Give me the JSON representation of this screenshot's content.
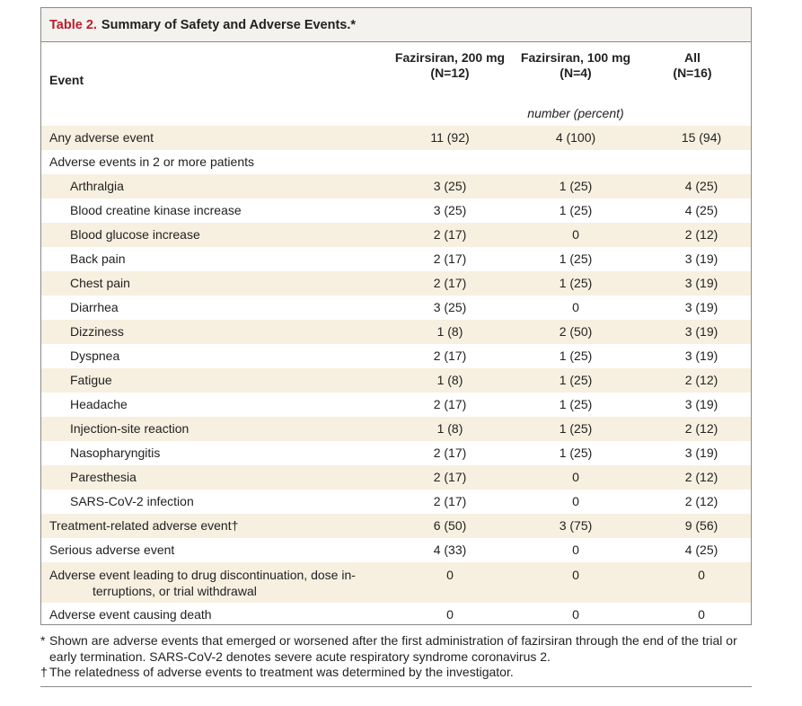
{
  "table": {
    "title_number": "Table 2.",
    "title_text": "Summary of Safety and Adverse Events.*",
    "event_header": "Event",
    "col1_name": "Fazirsiran, 200 mg",
    "col1_n": "(N=12)",
    "col2_name": "Fazirsiran, 100 mg",
    "col2_n": "(N=4)",
    "col3_name": "All",
    "col3_n": "(N=16)",
    "units": "number (percent)",
    "rows": [
      {
        "label": "Any adverse event",
        "v1": "11 (92)",
        "v2": "4 (100)",
        "v3": "15 (94)"
      },
      {
        "label": "Adverse events in 2 or more patients",
        "v1": "",
        "v2": "",
        "v3": ""
      },
      {
        "label": "Arthralgia",
        "v1": "3 (25)",
        "v2": "1 (25)",
        "v3": "4 (25)"
      },
      {
        "label": "Blood creatine kinase increase",
        "v1": "3 (25)",
        "v2": "1 (25)",
        "v3": "4 (25)"
      },
      {
        "label": "Blood glucose increase",
        "v1": "2 (17)",
        "v2": "0",
        "v3": "2 (12)"
      },
      {
        "label": "Back pain",
        "v1": "2 (17)",
        "v2": "1 (25)",
        "v3": "3 (19)"
      },
      {
        "label": "Chest pain",
        "v1": "2 (17)",
        "v2": "1 (25)",
        "v3": "3 (19)"
      },
      {
        "label": "Diarrhea",
        "v1": "3 (25)",
        "v2": "0",
        "v3": "3 (19)"
      },
      {
        "label": "Dizziness",
        "v1": "1 (8)",
        "v2": "2 (50)",
        "v3": "3 (19)"
      },
      {
        "label": "Dyspnea",
        "v1": "2 (17)",
        "v2": "1 (25)",
        "v3": "3 (19)"
      },
      {
        "label": "Fatigue",
        "v1": "1 (8)",
        "v2": "1 (25)",
        "v3": "2 (12)"
      },
      {
        "label": "Headache",
        "v1": "2 (17)",
        "v2": "1 (25)",
        "v3": "3 (19)"
      },
      {
        "label": "Injection-site reaction",
        "v1": "1 (8)",
        "v2": "1 (25)",
        "v3": "2 (12)"
      },
      {
        "label": "Nasopharyngitis",
        "v1": "2 (17)",
        "v2": "1 (25)",
        "v3": "3 (19)"
      },
      {
        "label": "Paresthesia",
        "v1": "2 (17)",
        "v2": "0",
        "v3": "2 (12)"
      },
      {
        "label": "SARS-CoV-2 infection",
        "v1": "2 (17)",
        "v2": "0",
        "v3": "2 (12)"
      },
      {
        "label": "Treatment-related adverse event†",
        "v1": "6 (50)",
        "v2": "3 (75)",
        "v3": "9 (56)"
      },
      {
        "label": "Serious adverse event",
        "v1": "4 (33)",
        "v2": "0",
        "v3": "4 (25)"
      },
      {
        "label": "Adverse event leading to drug discontinuation, dose in-",
        "label_cont": "terruptions, or trial withdrawal",
        "v1": "0",
        "v2": "0",
        "v3": "0"
      },
      {
        "label": "Adverse event causing death",
        "v1": "0",
        "v2": "0",
        "v3": "0"
      }
    ]
  },
  "footnotes": {
    "note1_symbol": "*",
    "note1_text": "Shown are adverse events that emerged or worsened after the first administration of fazirsiran through the end of the trial or early termination. SARS-CoV-2 denotes severe acute respiratory syndrome coronavirus 2.",
    "note2_symbol": "†",
    "note2_text": "The relatedness of adverse events to treatment was determined by the investigator."
  },
  "colors": {
    "title_accent": "#b5202e",
    "title_bg": "#f4f2ee",
    "row_shade": "#f7f0e0",
    "border": "#8a8a8a"
  }
}
